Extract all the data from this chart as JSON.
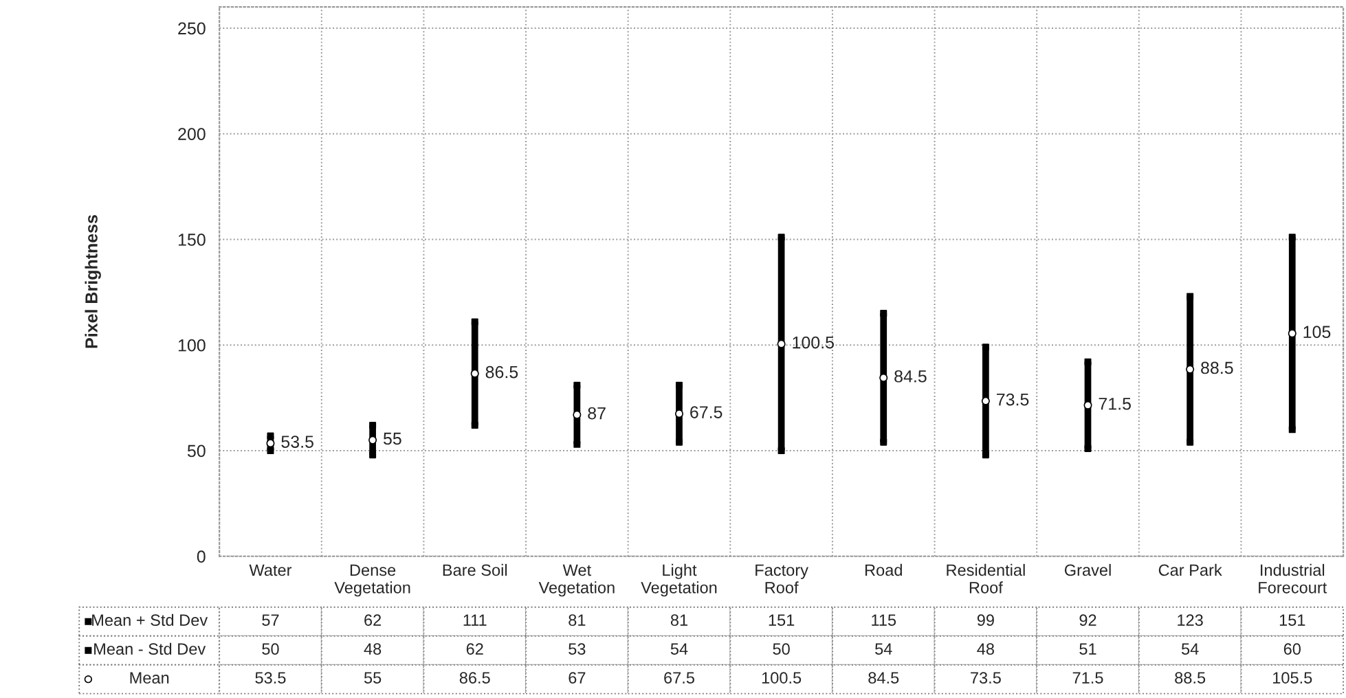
{
  "chart_data": {
    "type": "scatter",
    "ylabel": "Pixel Brightness",
    "categories": [
      "Water",
      "Dense\nVegetation",
      "Bare Soil",
      "Wet\nVegetation",
      "Light\nVegetation",
      "Factory\nRoof",
      "Road",
      "Residential\nRoof",
      "Gravel",
      "Car Park",
      "Industrial\nForecourt"
    ],
    "series": [
      {
        "name": "Mean + Std Dev",
        "marker": "square",
        "color": "#000000",
        "values": [
          57,
          62,
          111,
          81,
          81,
          151,
          115,
          99,
          92,
          123,
          151
        ]
      },
      {
        "name": "Mean - Std Dev",
        "marker": "square",
        "color": "#000000",
        "values": [
          50,
          48,
          62,
          53,
          54,
          50,
          54,
          48,
          51,
          54,
          60
        ]
      },
      {
        "name": "Mean",
        "marker": "circle",
        "color": "#ffffff",
        "values": [
          53.5,
          55,
          86.5,
          67,
          67.5,
          100.5,
          84.5,
          73.5,
          71.5,
          88.5,
          105.5
        ]
      }
    ],
    "annotations": [
      {
        "text": "53.5",
        "x": "Water",
        "y": 53.5
      },
      {
        "text": "55",
        "x": "Dense\nVegetation",
        "y": 55
      },
      {
        "text": "86.5",
        "x": "Bare Soil",
        "y": 86.5
      },
      {
        "text": "87",
        "x": "Wet\nVegetation",
        "y": 67
      },
      {
        "text": "67.5",
        "x": "Light\nVegetation",
        "y": 67.5
      },
      {
        "text": "100.5",
        "x": "Factory\nRoof",
        "y": 100.5
      },
      {
        "text": "84.5",
        "x": "Road",
        "y": 84.5
      },
      {
        "text": "73.5",
        "x": "Residential\nRoof",
        "y": 73.5
      },
      {
        "text": "71.5",
        "x": "Gravel",
        "y": 71.5
      },
      {
        "text": "88.5",
        "x": "Car Park",
        "y": 88.5
      },
      {
        "text": "105",
        "x": "Industrial\nForecourt",
        "y": 105.5
      }
    ],
    "data_labels": true,
    "ylim": [
      0,
      260
    ],
    "yticks": [
      0,
      50,
      100,
      150,
      200,
      250
    ],
    "grid": true,
    "legend": "bottom left"
  }
}
